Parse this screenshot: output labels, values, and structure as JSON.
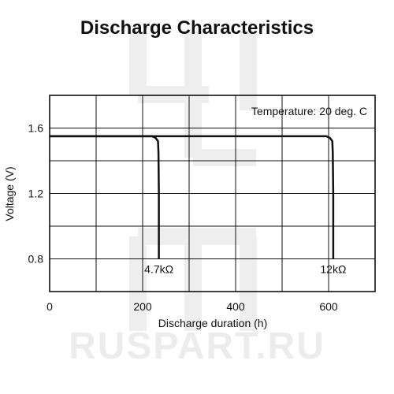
{
  "watermark": {
    "text": "RUSPART.RU"
  },
  "chart_data": {
    "type": "line",
    "title": "Discharge Characteristics",
    "xlabel": "Discharge duration (h)",
    "ylabel": "Voltage (V)",
    "xlim": [
      0,
      700
    ],
    "ylim": [
      0.6,
      1.8
    ],
    "xticks": [
      0,
      200,
      400,
      600
    ],
    "yticks": [
      0.8,
      1.2,
      1.6
    ],
    "xtick_labels": [
      "0",
      "200",
      "400",
      "600"
    ],
    "ytick_labels": [
      "0.8",
      "1.2",
      "1.6"
    ],
    "grid": true,
    "annotation": "Temperature: 20 deg. C",
    "series": [
      {
        "name": "4.7kΩ",
        "x": [
          0,
          220,
          228,
          233,
          234,
          235,
          235
        ],
        "y": [
          1.55,
          1.55,
          1.54,
          1.52,
          1.45,
          1.2,
          0.8
        ]
      },
      {
        "name": "12kΩ",
        "x": [
          0,
          595,
          603,
          608,
          609,
          610,
          610
        ],
        "y": [
          1.55,
          1.55,
          1.54,
          1.52,
          1.45,
          1.2,
          0.8
        ]
      }
    ]
  }
}
